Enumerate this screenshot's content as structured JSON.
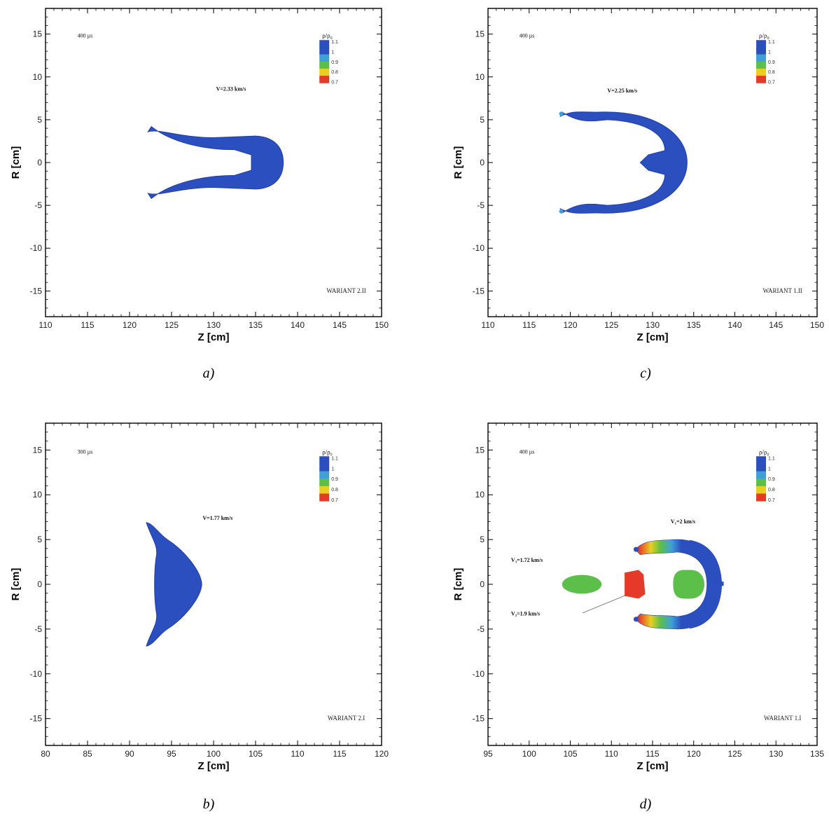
{
  "colors": {
    "blue": "#2b4fbe",
    "cyan": "#3fa0d8",
    "green": "#5cbf4a",
    "yellow": "#e8d020",
    "red": "#e53a2a",
    "orange": "#ee8a2a"
  },
  "chart_data": [
    {
      "id": "a",
      "type": "contour",
      "caption": "a)",
      "xlabel": "Z [cm]",
      "ylabel": "R [cm]",
      "xlim": [
        110,
        150
      ],
      "ylim": [
        -18,
        18
      ],
      "xticks": [
        110,
        115,
        120,
        125,
        130,
        135,
        140,
        145,
        150
      ],
      "yticks": [
        -15,
        -10,
        -5,
        0,
        5,
        10,
        15
      ],
      "time_label": "400 µs",
      "variant": "WARIANT 2.II",
      "legend": {
        "title": "ρ/ρ₀",
        "ticks": [
          "1.1",
          "1",
          "0.9",
          "0.8",
          "0.7"
        ]
      },
      "annotations": [
        {
          "text": "V=2.33 km/s",
          "x": 130.3,
          "y": 8.4
        }
      ],
      "shape": "u_jet"
    },
    {
      "id": "c",
      "type": "contour",
      "caption": "c)",
      "xlabel": "Z [cm]",
      "ylabel": "R [cm]",
      "xlim": [
        110,
        150
      ],
      "ylim": [
        -18,
        18
      ],
      "xticks": [
        110,
        115,
        120,
        125,
        130,
        135,
        140,
        145,
        150
      ],
      "yticks": [
        -15,
        -10,
        -5,
        0,
        5,
        10,
        15
      ],
      "time_label": "400 µs",
      "variant": "WARIANT 1.II",
      "legend": {
        "title": "ρ/ρ₀",
        "ticks": [
          "1.1",
          "1",
          "0.9",
          "0.8",
          "0.7"
        ]
      },
      "annotations": [
        {
          "text": "V=2.25 km/s",
          "x": 124.5,
          "y": 8.2
        }
      ],
      "shape": "horseshoe"
    },
    {
      "id": "b",
      "type": "contour",
      "caption": "b)",
      "xlabel": "Z [cm]",
      "ylabel": "R [cm]",
      "xlim": [
        80,
        120
      ],
      "ylim": [
        -18,
        18
      ],
      "xticks": [
        80,
        85,
        90,
        95,
        100,
        105,
        110,
        115,
        120
      ],
      "yticks": [
        -15,
        -10,
        -5,
        0,
        5,
        10,
        15
      ],
      "time_label": "300 µs",
      "variant": "WARIANT 2.I",
      "legend": {
        "title": "ρ/ρ₀",
        "ticks": [
          "1.1",
          "1",
          "0.9",
          "0.8",
          "0.7"
        ]
      },
      "annotations": [
        {
          "text": "V=1.77 km/s",
          "x": 98.7,
          "y": 7.2
        }
      ],
      "shape": "cone"
    },
    {
      "id": "d",
      "type": "contour",
      "caption": "d)",
      "xlabel": "Z [cm]",
      "ylabel": "R [cm]",
      "xlim": [
        95,
        135
      ],
      "ylim": [
        -18,
        18
      ],
      "xticks": [
        95,
        100,
        105,
        110,
        115,
        120,
        125,
        130,
        135
      ],
      "yticks": [
        -15,
        -10,
        -5,
        0,
        5,
        10,
        15
      ],
      "time_label": "400 µs",
      "variant": "WARIANT 1.I",
      "legend": {
        "title": "ρ/ρ₀",
        "ticks": [
          "1.1",
          "1",
          "0.9",
          "0.8",
          "0.7"
        ]
      },
      "annotations": [
        {
          "text": "V₁=2 km/s",
          "x": 117.2,
          "y": 6.8
        },
        {
          "text": "V₃=1.72 km/s",
          "x": 97.8,
          "y": 2.5
        },
        {
          "text": "V₂=1.9 km/s",
          "x": 97.8,
          "y": -3.5
        }
      ],
      "shape": "fragmented"
    }
  ]
}
